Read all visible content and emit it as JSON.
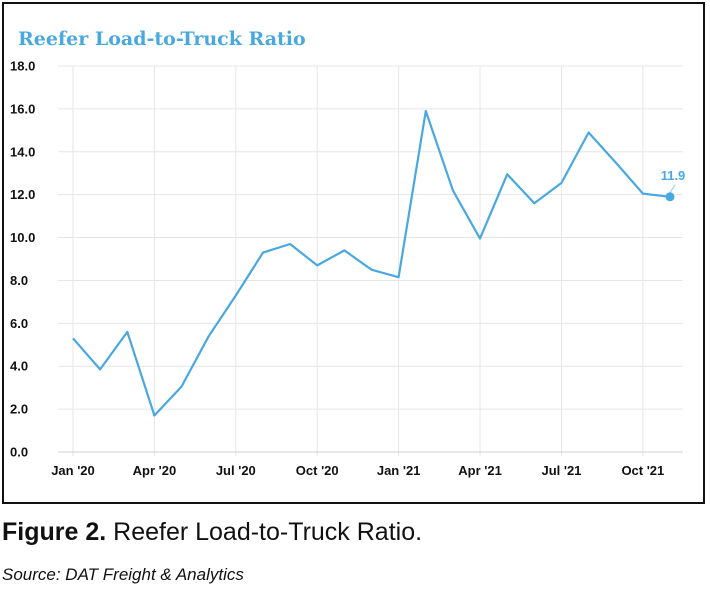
{
  "chart_data": {
    "type": "line",
    "title": "Reefer Load-to-Truck Ratio",
    "xlabel": "",
    "ylabel": "",
    "ylim": [
      0,
      18
    ],
    "yticks": [
      "0.0",
      "2.0",
      "4.0",
      "6.0",
      "8.0",
      "10.0",
      "12.0",
      "14.0",
      "16.0",
      "18.0"
    ],
    "xtick_labels": [
      "Jan '20",
      "Apr '20",
      "Jul '20",
      "Oct '20",
      "Jan '21",
      "Apr '21",
      "Jul '21",
      "Oct '21"
    ],
    "grid": true,
    "line_color": "#4aa8e0",
    "x": [
      "Jan '20",
      "Feb '20",
      "Mar '20",
      "Apr '20",
      "May '20",
      "Jun '20",
      "Jul '20",
      "Aug '20",
      "Sep '20",
      "Oct '20",
      "Nov '20",
      "Dec '20",
      "Jan '21",
      "Feb '21",
      "Mar '21",
      "Apr '21",
      "May '21",
      "Jun '21",
      "Jul '21",
      "Aug '21",
      "Sep '21",
      "Oct '21",
      "Nov '21"
    ],
    "values": [
      5.3,
      3.85,
      5.6,
      1.7,
      3.05,
      5.4,
      7.3,
      9.3,
      9.7,
      8.7,
      9.4,
      8.5,
      8.15,
      15.9,
      12.2,
      9.95,
      12.95,
      11.6,
      12.55,
      14.9,
      13.5,
      12.05,
      11.9
    ],
    "annotation": {
      "label": "11.9",
      "value": 11.9
    }
  },
  "caption": {
    "figure": "Figure 2.",
    "text": " Reefer Load-to-Truck Ratio."
  },
  "source": "Source: DAT Freight & Analytics"
}
